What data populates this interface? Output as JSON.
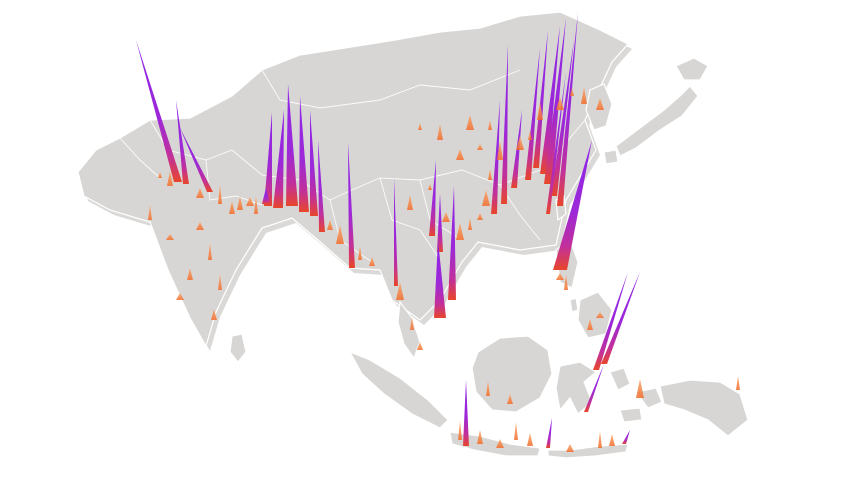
{
  "map": {
    "colors": {
      "land": "#d8d6d4",
      "land_shadow": "#bdbab7",
      "border": "#ffffff",
      "spike_high": "#8e24e8",
      "spike_mid": "#b02fc0",
      "spike_low": "#f26b2a",
      "spike_faint": "#f7a56b"
    }
  }
}
